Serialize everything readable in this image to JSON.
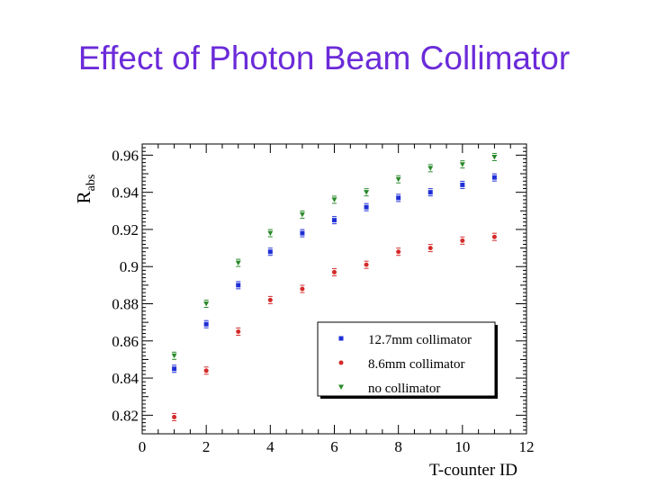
{
  "slide": {
    "title": "Effect of Photon Beam Collimator"
  },
  "chart_data": {
    "type": "scatter",
    "title": "",
    "xlabel": "T-counter ID",
    "ylabel": "R",
    "ylabel_subscript": "abs",
    "xlim": [
      0,
      12
    ],
    "ylim": [
      0.81,
      0.966
    ],
    "xticks": [
      "0",
      "2",
      "4",
      "6",
      "8",
      "10",
      "12"
    ],
    "yticks": [
      "0.82",
      "0.84",
      "0.86",
      "0.88",
      "0.9",
      "0.92",
      "0.94",
      "0.96"
    ],
    "legend_position": "bottom-right",
    "series": [
      {
        "name": "12.7mm collimator",
        "color": "#1f2fd6",
        "marker": "square",
        "x": [
          1,
          2,
          3,
          4,
          5,
          6,
          7,
          8,
          9,
          10,
          11
        ],
        "y": [
          0.845,
          0.869,
          0.89,
          0.908,
          0.918,
          0.925,
          0.932,
          0.937,
          0.94,
          0.944,
          0.948
        ]
      },
      {
        "name": "8.6mm collimator",
        "color": "#d62a2a",
        "marker": "circle",
        "x": [
          1,
          2,
          3,
          4,
          5,
          6,
          7,
          8,
          9,
          10,
          11
        ],
        "y": [
          0.819,
          0.844,
          0.865,
          0.882,
          0.888,
          0.897,
          0.901,
          0.908,
          0.91,
          0.914,
          0.916
        ]
      },
      {
        "name": "no collimator",
        "color": "#2a8a2a",
        "marker": "triangle-down",
        "x": [
          1,
          2,
          3,
          4,
          5,
          6,
          7,
          8,
          9,
          10,
          11
        ],
        "y": [
          0.852,
          0.88,
          0.902,
          0.918,
          0.928,
          0.936,
          0.94,
          0.947,
          0.953,
          0.955,
          0.959
        ]
      }
    ]
  }
}
